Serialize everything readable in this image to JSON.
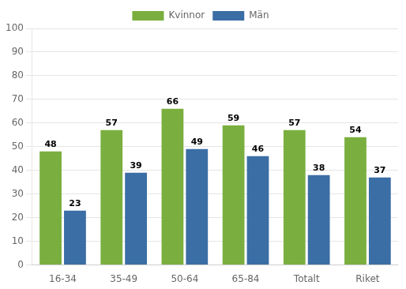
{
  "chart_data": {
    "type": "bar",
    "categories": [
      "16-34",
      "35-49",
      "50-64",
      "65-84",
      "Totalt",
      "Riket"
    ],
    "series": [
      {
        "name": "Kvinnor",
        "color": "#7AAF3F",
        "values": [
          48,
          57,
          66,
          59,
          57,
          54
        ]
      },
      {
        "name": "Män",
        "color": "#3B6EA5",
        "values": [
          23,
          39,
          49,
          46,
          38,
          37
        ]
      }
    ],
    "ylim": [
      0,
      100
    ],
    "yticks": [
      0,
      10,
      20,
      30,
      40,
      50,
      60,
      70,
      80,
      90,
      100
    ],
    "grid": true,
    "data_labels": true,
    "legend": "top"
  }
}
